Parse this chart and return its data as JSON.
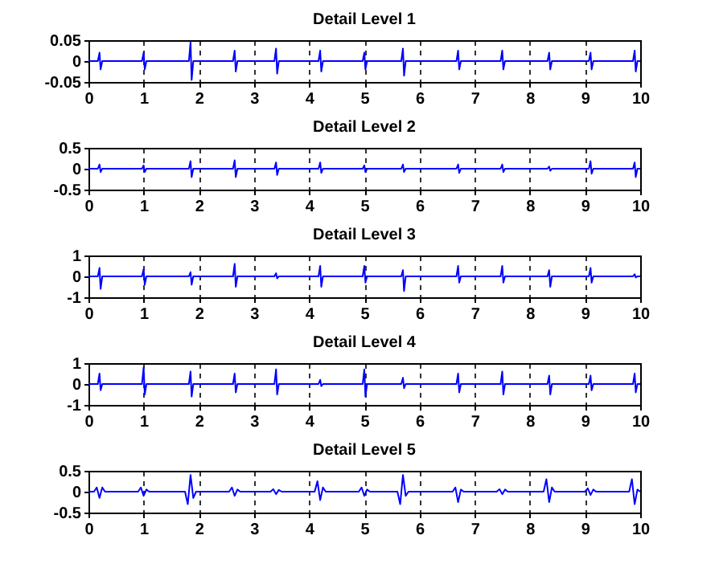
{
  "chart_data": [
    {
      "type": "line",
      "title": "Detail Level 1",
      "color": "#0000ff",
      "xlim": [
        0,
        10
      ],
      "xticks": [
        0,
        1,
        2,
        3,
        4,
        5,
        6,
        7,
        8,
        9,
        10
      ],
      "ylim": [
        -0.05,
        0.05
      ],
      "yticks": [
        -0.05,
        0,
        0.05
      ],
      "grid": "x",
      "x": [
        0,
        0.17,
        0.2,
        0.22,
        0.25,
        0.97,
        1.0,
        1.02,
        1.05,
        1.82,
        1.85,
        1.87,
        1.9,
        2.62,
        2.65,
        2.67,
        2.7,
        3.37,
        3.4,
        3.42,
        3.45,
        4.17,
        4.2,
        4.22,
        4.25,
        4.97,
        5.0,
        5.02,
        5.05,
        5.67,
        5.7,
        5.72,
        5.75,
        6.67,
        6.7,
        6.72,
        6.75,
        7.47,
        7.5,
        7.52,
        7.55,
        8.32,
        8.35,
        8.37,
        8.4,
        9.07,
        9.1,
        9.12,
        9.15,
        9.87,
        9.9,
        9.92,
        9.95,
        10
      ],
      "values": [
        0,
        0,
        0.02,
        -0.02,
        0,
        0,
        0.02,
        -0.02,
        0,
        0,
        0.045,
        -0.045,
        0,
        0,
        0.025,
        -0.025,
        0,
        0,
        0.03,
        -0.03,
        0,
        0,
        0.025,
        -0.025,
        0,
        0,
        0.02,
        -0.02,
        0,
        0,
        0.03,
        -0.035,
        0,
        0,
        0.025,
        -0.02,
        0,
        0,
        0.025,
        -0.02,
        0,
        0,
        0.02,
        -0.02,
        0,
        0,
        0.02,
        -0.02,
        0,
        0,
        0.025,
        -0.025,
        0,
        0
      ]
    },
    {
      "type": "line",
      "title": "Detail Level 2",
      "color": "#0000ff",
      "xlim": [
        0,
        10
      ],
      "xticks": [
        0,
        1,
        2,
        3,
        4,
        5,
        6,
        7,
        8,
        9,
        10
      ],
      "ylim": [
        -0.5,
        0.5
      ],
      "yticks": [
        -0.5,
        0,
        0.5
      ],
      "grid": "x",
      "x": [
        0,
        0.17,
        0.2,
        0.22,
        0.25,
        0.97,
        1.0,
        1.02,
        1.05,
        1.82,
        1.85,
        1.87,
        1.9,
        2.62,
        2.65,
        2.67,
        2.7,
        3.37,
        3.4,
        3.42,
        3.45,
        4.17,
        4.2,
        4.22,
        4.25,
        4.97,
        5.0,
        5.02,
        5.05,
        5.67,
        5.7,
        5.72,
        5.75,
        6.67,
        6.7,
        6.72,
        6.75,
        7.47,
        7.5,
        7.52,
        7.55,
        8.32,
        8.35,
        8.37,
        8.4,
        9.07,
        9.1,
        9.12,
        9.15,
        9.87,
        9.9,
        9.92,
        9.95,
        10
      ],
      "values": [
        0,
        0,
        0.1,
        -0.08,
        0,
        0,
        0.08,
        -0.08,
        0,
        0,
        0.18,
        -0.2,
        0,
        0,
        0.2,
        -0.2,
        0,
        0,
        0.15,
        -0.15,
        0,
        0,
        0.15,
        -0.1,
        0,
        0,
        0.08,
        -0.08,
        0,
        0,
        0.1,
        -0.08,
        0,
        0,
        0.1,
        -0.1,
        0,
        0,
        0.1,
        -0.08,
        0,
        0,
        0.05,
        -0.05,
        0,
        0,
        0.18,
        -0.12,
        0,
        0,
        0.15,
        -0.2,
        0,
        0
      ]
    },
    {
      "type": "line",
      "title": "Detail Level 3",
      "color": "#0000ff",
      "xlim": [
        0,
        10
      ],
      "xticks": [
        0,
        1,
        2,
        3,
        4,
        5,
        6,
        7,
        8,
        9,
        10
      ],
      "ylim": [
        -1,
        1
      ],
      "yticks": [
        -1,
        0,
        1
      ],
      "grid": "x",
      "x": [
        0,
        0.17,
        0.2,
        0.22,
        0.25,
        0.97,
        1.0,
        1.02,
        1.05,
        1.82,
        1.85,
        1.87,
        1.9,
        2.62,
        2.65,
        2.67,
        2.7,
        3.37,
        3.4,
        3.42,
        3.45,
        4.17,
        4.2,
        4.22,
        4.25,
        4.97,
        5.0,
        5.02,
        5.05,
        5.67,
        5.7,
        5.72,
        5.75,
        6.67,
        6.7,
        6.72,
        6.75,
        7.47,
        7.5,
        7.52,
        7.55,
        8.32,
        8.35,
        8.37,
        8.4,
        9.07,
        9.1,
        9.12,
        9.15,
        9.87,
        9.9,
        9.92,
        9.95,
        10
      ],
      "values": [
        0,
        0,
        0.4,
        -0.6,
        0,
        0,
        0.35,
        -0.4,
        0,
        0,
        0.2,
        -0.4,
        0,
        0,
        0.6,
        -0.5,
        0,
        0,
        0.15,
        -0.1,
        0,
        0,
        0.5,
        -0.5,
        0,
        0,
        0.5,
        -0.3,
        0,
        0,
        0.3,
        -0.7,
        0,
        0,
        0.5,
        -0.3,
        0,
        0,
        0.5,
        -0.3,
        0,
        0,
        0.3,
        -0.5,
        0,
        0,
        0.4,
        -0.3,
        0,
        0,
        0.1,
        -0.05,
        0,
        0
      ]
    },
    {
      "type": "line",
      "title": "Detail Level 4",
      "color": "#0000ff",
      "xlim": [
        0,
        10
      ],
      "xticks": [
        0,
        1,
        2,
        3,
        4,
        5,
        6,
        7,
        8,
        9,
        10
      ],
      "ylim": [
        -1,
        1
      ],
      "yticks": [
        -1,
        0,
        1
      ],
      "grid": "x",
      "x": [
        0,
        0.17,
        0.2,
        0.22,
        0.25,
        0.97,
        1.0,
        1.02,
        1.05,
        1.82,
        1.85,
        1.87,
        1.9,
        2.62,
        2.65,
        2.67,
        2.7,
        3.37,
        3.4,
        3.42,
        3.45,
        4.17,
        4.2,
        4.22,
        4.25,
        4.97,
        5.0,
        5.02,
        5.05,
        5.67,
        5.7,
        5.72,
        5.75,
        6.67,
        6.7,
        6.72,
        6.75,
        7.47,
        7.5,
        7.52,
        7.55,
        8.32,
        8.35,
        8.37,
        8.4,
        9.07,
        9.1,
        9.12,
        9.15,
        9.87,
        9.9,
        9.92,
        9.95,
        10
      ],
      "values": [
        0,
        0,
        0.5,
        -0.3,
        0,
        0,
        0.8,
        -0.5,
        0,
        0,
        0.6,
        -0.6,
        0,
        0,
        0.5,
        -0.4,
        0,
        0,
        0.7,
        -0.5,
        0,
        0,
        0.2,
        -0.1,
        0,
        0,
        0.7,
        -0.6,
        0,
        0,
        0.3,
        -0.2,
        0,
        0,
        0.5,
        -0.4,
        0,
        0,
        0.6,
        -0.5,
        0,
        0,
        0.4,
        -0.5,
        0,
        0,
        0.4,
        -0.3,
        0,
        0,
        0.5,
        -0.4,
        0,
        0
      ]
    },
    {
      "type": "line",
      "title": "Detail Level 5",
      "color": "#0000ff",
      "xlim": [
        0,
        10
      ],
      "xticks": [
        0,
        1,
        2,
        3,
        4,
        5,
        6,
        7,
        8,
        9,
        10
      ],
      "ylim": [
        -0.5,
        0.5
      ],
      "yticks": [
        -0.5,
        0,
        0.5
      ],
      "grid": "x",
      "x": [
        0,
        0.1,
        0.15,
        0.2,
        0.25,
        0.3,
        0.9,
        0.95,
        1.0,
        1.05,
        1.1,
        1.75,
        1.8,
        1.85,
        1.9,
        1.95,
        2.55,
        2.6,
        2.65,
        2.7,
        2.75,
        3.3,
        3.35,
        3.4,
        3.45,
        3.5,
        4.1,
        4.15,
        4.2,
        4.25,
        4.3,
        4.9,
        4.95,
        5.0,
        5.05,
        5.1,
        5.6,
        5.65,
        5.7,
        5.75,
        5.8,
        6.6,
        6.65,
        6.7,
        6.75,
        6.8,
        7.4,
        7.45,
        7.5,
        7.55,
        7.6,
        8.25,
        8.3,
        8.35,
        8.4,
        8.45,
        9.0,
        9.05,
        9.1,
        9.15,
        9.2,
        9.8,
        9.85,
        9.9,
        9.95,
        10
      ],
      "values": [
        0,
        0,
        0.1,
        -0.15,
        0.1,
        0,
        0,
        0.1,
        -0.1,
        0.05,
        0,
        0,
        -0.3,
        0.4,
        -0.15,
        0,
        0,
        0.1,
        -0.1,
        0.05,
        0,
        0,
        0.06,
        -0.06,
        0.04,
        0,
        0,
        0.25,
        -0.2,
        0.1,
        0,
        0,
        0.1,
        -0.1,
        0.05,
        0,
        0,
        -0.3,
        0.4,
        -0.1,
        0,
        0,
        0.1,
        -0.25,
        0.05,
        0,
        0,
        0.06,
        -0.06,
        0.05,
        0,
        0,
        0.3,
        -0.25,
        0.1,
        0,
        0,
        0.08,
        -0.08,
        0.05,
        0,
        0,
        0.3,
        -0.3,
        0.05,
        0
      ]
    }
  ]
}
